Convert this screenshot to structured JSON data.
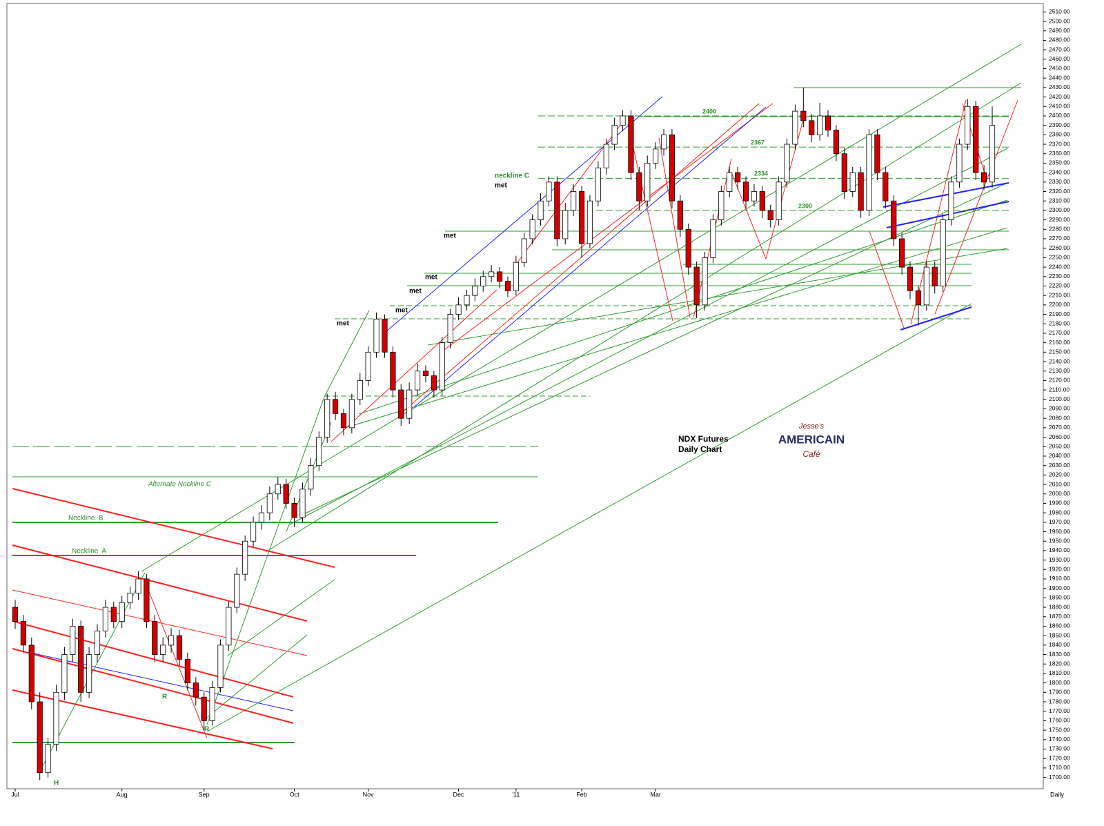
{
  "chart_data": {
    "type": "candlestick",
    "title": "NDX  Futures",
    "subtitle": "Daily Chart",
    "period_label": "Daily",
    "categories": [
      "Jul",
      null,
      null,
      null,
      null,
      null,
      null,
      null,
      null,
      null,
      null,
      null,
      null,
      "Aug",
      null,
      null,
      null,
      null,
      null,
      null,
      null,
      null,
      null,
      "Sep",
      null,
      null,
      null,
      null,
      null,
      null,
      null,
      null,
      null,
      null,
      "Oct",
      null,
      null,
      null,
      null,
      null,
      null,
      null,
      null,
      "Nov",
      null,
      null,
      null,
      null,
      null,
      null,
      null,
      null,
      null,
      null,
      "Dec",
      null,
      null,
      null,
      null,
      null,
      null,
      "'11",
      null,
      null,
      null,
      null,
      null,
      null,
      null,
      "Feb",
      null,
      null,
      null,
      null,
      null,
      null,
      null,
      null,
      "Mar",
      null,
      null,
      null,
      null,
      null,
      null,
      null,
      null,
      null,
      null,
      null,
      null,
      null,
      null,
      null,
      null,
      null,
      null,
      null,
      null,
      null,
      null,
      null,
      null,
      null,
      null,
      null,
      null,
      null,
      null,
      null,
      null,
      null,
      null,
      null,
      null,
      null,
      null,
      null,
      null,
      null
    ],
    "open": [
      1880,
      1865,
      1840,
      1780,
      1705,
      1735,
      1790,
      1830,
      1860,
      1790,
      1830,
      1855,
      1880,
      1865,
      1885,
      1895,
      1910,
      1865,
      1830,
      1840,
      1850,
      1825,
      1800,
      1785,
      1760,
      1795,
      1840,
      1880,
      1915,
      1950,
      1970,
      1980,
      2000,
      2010,
      1990,
      1975,
      2005,
      2030,
      2060,
      2100,
      2085,
      2070,
      2100,
      2120,
      2150,
      2185,
      2150,
      2110,
      2080,
      2110,
      2130,
      2125,
      2110,
      2160,
      2190,
      2200,
      2210,
      2220,
      2230,
      2235,
      2225,
      2215,
      2245,
      2270,
      2290,
      2310,
      2330,
      2270,
      2300,
      2320,
      2265,
      2310,
      2345,
      2370,
      2390,
      2400,
      2340,
      2310,
      2350,
      2365,
      2380,
      2310,
      2280,
      2240,
      2200,
      2250,
      2290,
      2320,
      2340,
      2330,
      2310,
      2320,
      2300,
      2290,
      2330,
      2370,
      2405,
      2395,
      2380,
      2400,
      2385,
      2360,
      2320,
      2340,
      2300,
      2380,
      2340,
      2310,
      2270,
      2240,
      2215,
      2200,
      2240,
      2220,
      2290,
      2330,
      2370,
      2410,
      2340,
      2330
    ],
    "high": [
      1888,
      1872,
      1848,
      1790,
      1742,
      1798,
      1838,
      1868,
      1866,
      1838,
      1862,
      1888,
      1886,
      1892,
      1902,
      1918,
      1915,
      1872,
      1848,
      1858,
      1856,
      1832,
      1806,
      1790,
      1802,
      1846,
      1886,
      1922,
      1956,
      1976,
      1988,
      2008,
      2018,
      2016,
      1996,
      2012,
      2038,
      2066,
      2106,
      2108,
      2090,
      2106,
      2128,
      2156,
      2192,
      2190,
      2156,
      2116,
      2118,
      2138,
      2136,
      2130,
      2166,
      2196,
      2208,
      2216,
      2228,
      2236,
      2242,
      2240,
      2230,
      2252,
      2276,
      2296,
      2318,
      2336,
      2336,
      2308,
      2328,
      2326,
      2316,
      2352,
      2376,
      2398,
      2406,
      2406,
      2346,
      2358,
      2372,
      2386,
      2386,
      2316,
      2286,
      2246,
      2256,
      2296,
      2326,
      2346,
      2346,
      2336,
      2328,
      2326,
      2306,
      2336,
      2376,
      2412,
      2430,
      2402,
      2414,
      2406,
      2390,
      2366,
      2346,
      2346,
      2386,
      2386,
      2346,
      2316,
      2276,
      2246,
      2220,
      2246,
      2246,
      2296,
      2336,
      2376,
      2418,
      2416,
      2348,
      2410
    ],
    "low": [
      1857,
      1832,
      1772,
      1697,
      1700,
      1728,
      1782,
      1822,
      1780,
      1784,
      1822,
      1848,
      1858,
      1858,
      1878,
      1888,
      1858,
      1822,
      1822,
      1832,
      1818,
      1792,
      1776,
      1750,
      1755,
      1790,
      1834,
      1874,
      1908,
      1944,
      1962,
      1972,
      1994,
      1984,
      1965,
      1970,
      1998,
      2024,
      2054,
      2078,
      2062,
      2064,
      2094,
      2114,
      2144,
      2144,
      2102,
      2072,
      2074,
      2104,
      2118,
      2102,
      2104,
      2154,
      2184,
      2194,
      2204,
      2214,
      2224,
      2218,
      2208,
      2210,
      2240,
      2264,
      2284,
      2304,
      2262,
      2264,
      2294,
      2250,
      2260,
      2304,
      2338,
      2364,
      2384,
      2332,
      2300,
      2304,
      2344,
      2358,
      2302,
      2272,
      2232,
      2186,
      2194,
      2244,
      2284,
      2314,
      2322,
      2302,
      2304,
      2292,
      2282,
      2284,
      2324,
      2364,
      2388,
      2372,
      2374,
      2378,
      2352,
      2312,
      2314,
      2292,
      2294,
      2332,
      2302,
      2262,
      2232,
      2206,
      2178,
      2194,
      2212,
      2214,
      2284,
      2324,
      2364,
      2332,
      2322,
      2324
    ],
    "close": [
      1865,
      1840,
      1780,
      1705,
      1735,
      1790,
      1830,
      1860,
      1790,
      1830,
      1855,
      1880,
      1865,
      1885,
      1895,
      1910,
      1865,
      1830,
      1840,
      1850,
      1825,
      1800,
      1785,
      1760,
      1795,
      1840,
      1880,
      1915,
      1950,
      1970,
      1980,
      2000,
      2010,
      1990,
      1975,
      2005,
      2030,
      2060,
      2100,
      2085,
      2070,
      2100,
      2120,
      2150,
      2185,
      2150,
      2110,
      2080,
      2110,
      2130,
      2125,
      2110,
      2160,
      2190,
      2200,
      2210,
      2220,
      2230,
      2235,
      2225,
      2215,
      2245,
      2270,
      2290,
      2310,
      2330,
      2270,
      2300,
      2320,
      2265,
      2310,
      2345,
      2370,
      2390,
      2400,
      2340,
      2310,
      2350,
      2365,
      2380,
      2310,
      2280,
      2240,
      2200,
      2250,
      2290,
      2320,
      2340,
      2330,
      2310,
      2320,
      2300,
      2290,
      2330,
      2370,
      2405,
      2395,
      2380,
      2400,
      2385,
      2360,
      2320,
      2340,
      2300,
      2380,
      2340,
      2310,
      2270,
      2240,
      2215,
      2200,
      2240,
      2220,
      2290,
      2330,
      2370,
      2410,
      2340,
      2330,
      2390
    ],
    "up_color": "#ffffff",
    "down_color": "#d40000",
    "ylim": [
      1688,
      2519
    ],
    "yticks": [
      {
        "value": 1700,
        "label": "1700.00"
      },
      {
        "value": 1710,
        "label": "1710.00"
      },
      {
        "value": 1720,
        "label": "1720.00"
      },
      {
        "value": 1730,
        "label": "1730.00"
      },
      {
        "value": 1740,
        "label": "1740.00"
      },
      {
        "value": 1750,
        "label": "1750.00"
      },
      {
        "value": 1760,
        "label": "1760.00"
      },
      {
        "value": 1770,
        "label": "1770.00"
      },
      {
        "value": 1780,
        "label": "1780.00"
      },
      {
        "value": 1790,
        "label": "1790.00"
      },
      {
        "value": 1800,
        "label": "1800.00"
      },
      {
        "value": 1810,
        "label": "1810.00"
      },
      {
        "value": 1820,
        "label": "1820.00"
      },
      {
        "value": 1830,
        "label": "1830.00"
      },
      {
        "value": 1840,
        "label": "1840.00"
      },
      {
        "value": 1850,
        "label": "1850.00"
      },
      {
        "value": 1860,
        "label": "1860.00"
      },
      {
        "value": 1870,
        "label": "1870.00"
      },
      {
        "value": 1880,
        "label": "1880.00"
      },
      {
        "value": 1890,
        "label": "1890.00"
      },
      {
        "value": 1900,
        "label": "1900.00"
      },
      {
        "value": 1910,
        "label": "1910.00"
      },
      {
        "value": 1920,
        "label": "1920.00"
      },
      {
        "value": 1930,
        "label": "1930.00"
      },
      {
        "value": 1940,
        "label": "1940.00"
      },
      {
        "value": 1950,
        "label": "1950.00"
      },
      {
        "value": 1960,
        "label": "1960.00"
      },
      {
        "value": 1970,
        "label": "1970.00"
      },
      {
        "value": 1980,
        "label": "1980.00"
      },
      {
        "value": 1990,
        "label": "1990.00"
      },
      {
        "value": 2000,
        "label": "2000.00"
      },
      {
        "value": 2010,
        "label": "2010.00"
      },
      {
        "value": 2020,
        "label": "2020.00"
      },
      {
        "value": 2030,
        "label": "2030.00"
      },
      {
        "value": 2040,
        "label": "2040.00"
      },
      {
        "value": 2050,
        "label": "2050.00"
      },
      {
        "value": 2060,
        "label": "2060.00"
      },
      {
        "value": 2070,
        "label": "2070.00"
      },
      {
        "value": 2080,
        "label": "2080.00"
      },
      {
        "value": 2090,
        "label": "2090.00"
      },
      {
        "value": 2100,
        "label": "2100.00"
      },
      {
        "value": 2110,
        "label": "2110.00"
      },
      {
        "value": 2120,
        "label": "2120.00"
      },
      {
        "value": 2130,
        "label": "2130.00"
      },
      {
        "value": 2140,
        "label": "2140.00"
      },
      {
        "value": 2150,
        "label": "2150.00"
      },
      {
        "value": 2160,
        "label": "2160.00"
      },
      {
        "value": 2170,
        "label": "2170.00"
      },
      {
        "value": 2180,
        "label": "2180.00"
      },
      {
        "value": 2190,
        "label": "2190.00"
      },
      {
        "value": 2200,
        "label": "2200.00"
      },
      {
        "value": 2210,
        "label": "2210.00"
      },
      {
        "value": 2220,
        "label": "2220.00"
      },
      {
        "value": 2230,
        "label": "2230.00"
      },
      {
        "value": 2240,
        "label": "2240.00"
      },
      {
        "value": 2250,
        "label": "2250.00"
      },
      {
        "value": 2260,
        "label": "2260.00"
      },
      {
        "value": 2270,
        "label": "2270.00"
      },
      {
        "value": 2280,
        "label": "2280.00"
      },
      {
        "value": 2290,
        "label": "2290.00"
      },
      {
        "value": 2300,
        "label": "2300.00"
      },
      {
        "value": 2310,
        "label": "2310.00"
      },
      {
        "value": 2320,
        "label": "2320.00"
      },
      {
        "value": 2330,
        "label": "2330.00"
      },
      {
        "value": 2340,
        "label": "2340.00"
      },
      {
        "value": 2350,
        "label": "2350.00"
      },
      {
        "value": 2360,
        "label": "2360.00"
      },
      {
        "value": 2370,
        "label": "2370.00"
      },
      {
        "value": 2380,
        "label": "2380.00"
      },
      {
        "value": 2390,
        "label": "2390.00"
      },
      {
        "value": 2400,
        "label": "2400.00"
      },
      {
        "value": 2410,
        "label": "2410.00"
      },
      {
        "value": 2420,
        "label": "2420.00"
      },
      {
        "value": 2430,
        "label": "2430.00"
      },
      {
        "value": 2440,
        "label": "2440.00"
      },
      {
        "value": 2450,
        "label": "2450.00"
      },
      {
        "value": 2460,
        "label": "2460.00"
      },
      {
        "value": 2470,
        "label": "2470.00"
      },
      {
        "value": 2480,
        "label": "2480.00"
      },
      {
        "value": 2490,
        "label": "2490.00"
      },
      {
        "value": 2500,
        "label": "2500.00"
      },
      {
        "value": 2510,
        "label": "2510.00"
      }
    ],
    "levels": [
      2400,
      2367,
      2334,
      2300
    ],
    "annotations": [
      "neckline C",
      "met",
      "met",
      "met",
      "met",
      "met",
      "met",
      "Alternate Neckline C",
      "Neckline  B",
      "Neckline  A",
      "H",
      "R",
      "R"
    ],
    "logo": {
      "top": "Jesse's",
      "main": "AMERICAIN",
      "bottom": "Café"
    }
  }
}
